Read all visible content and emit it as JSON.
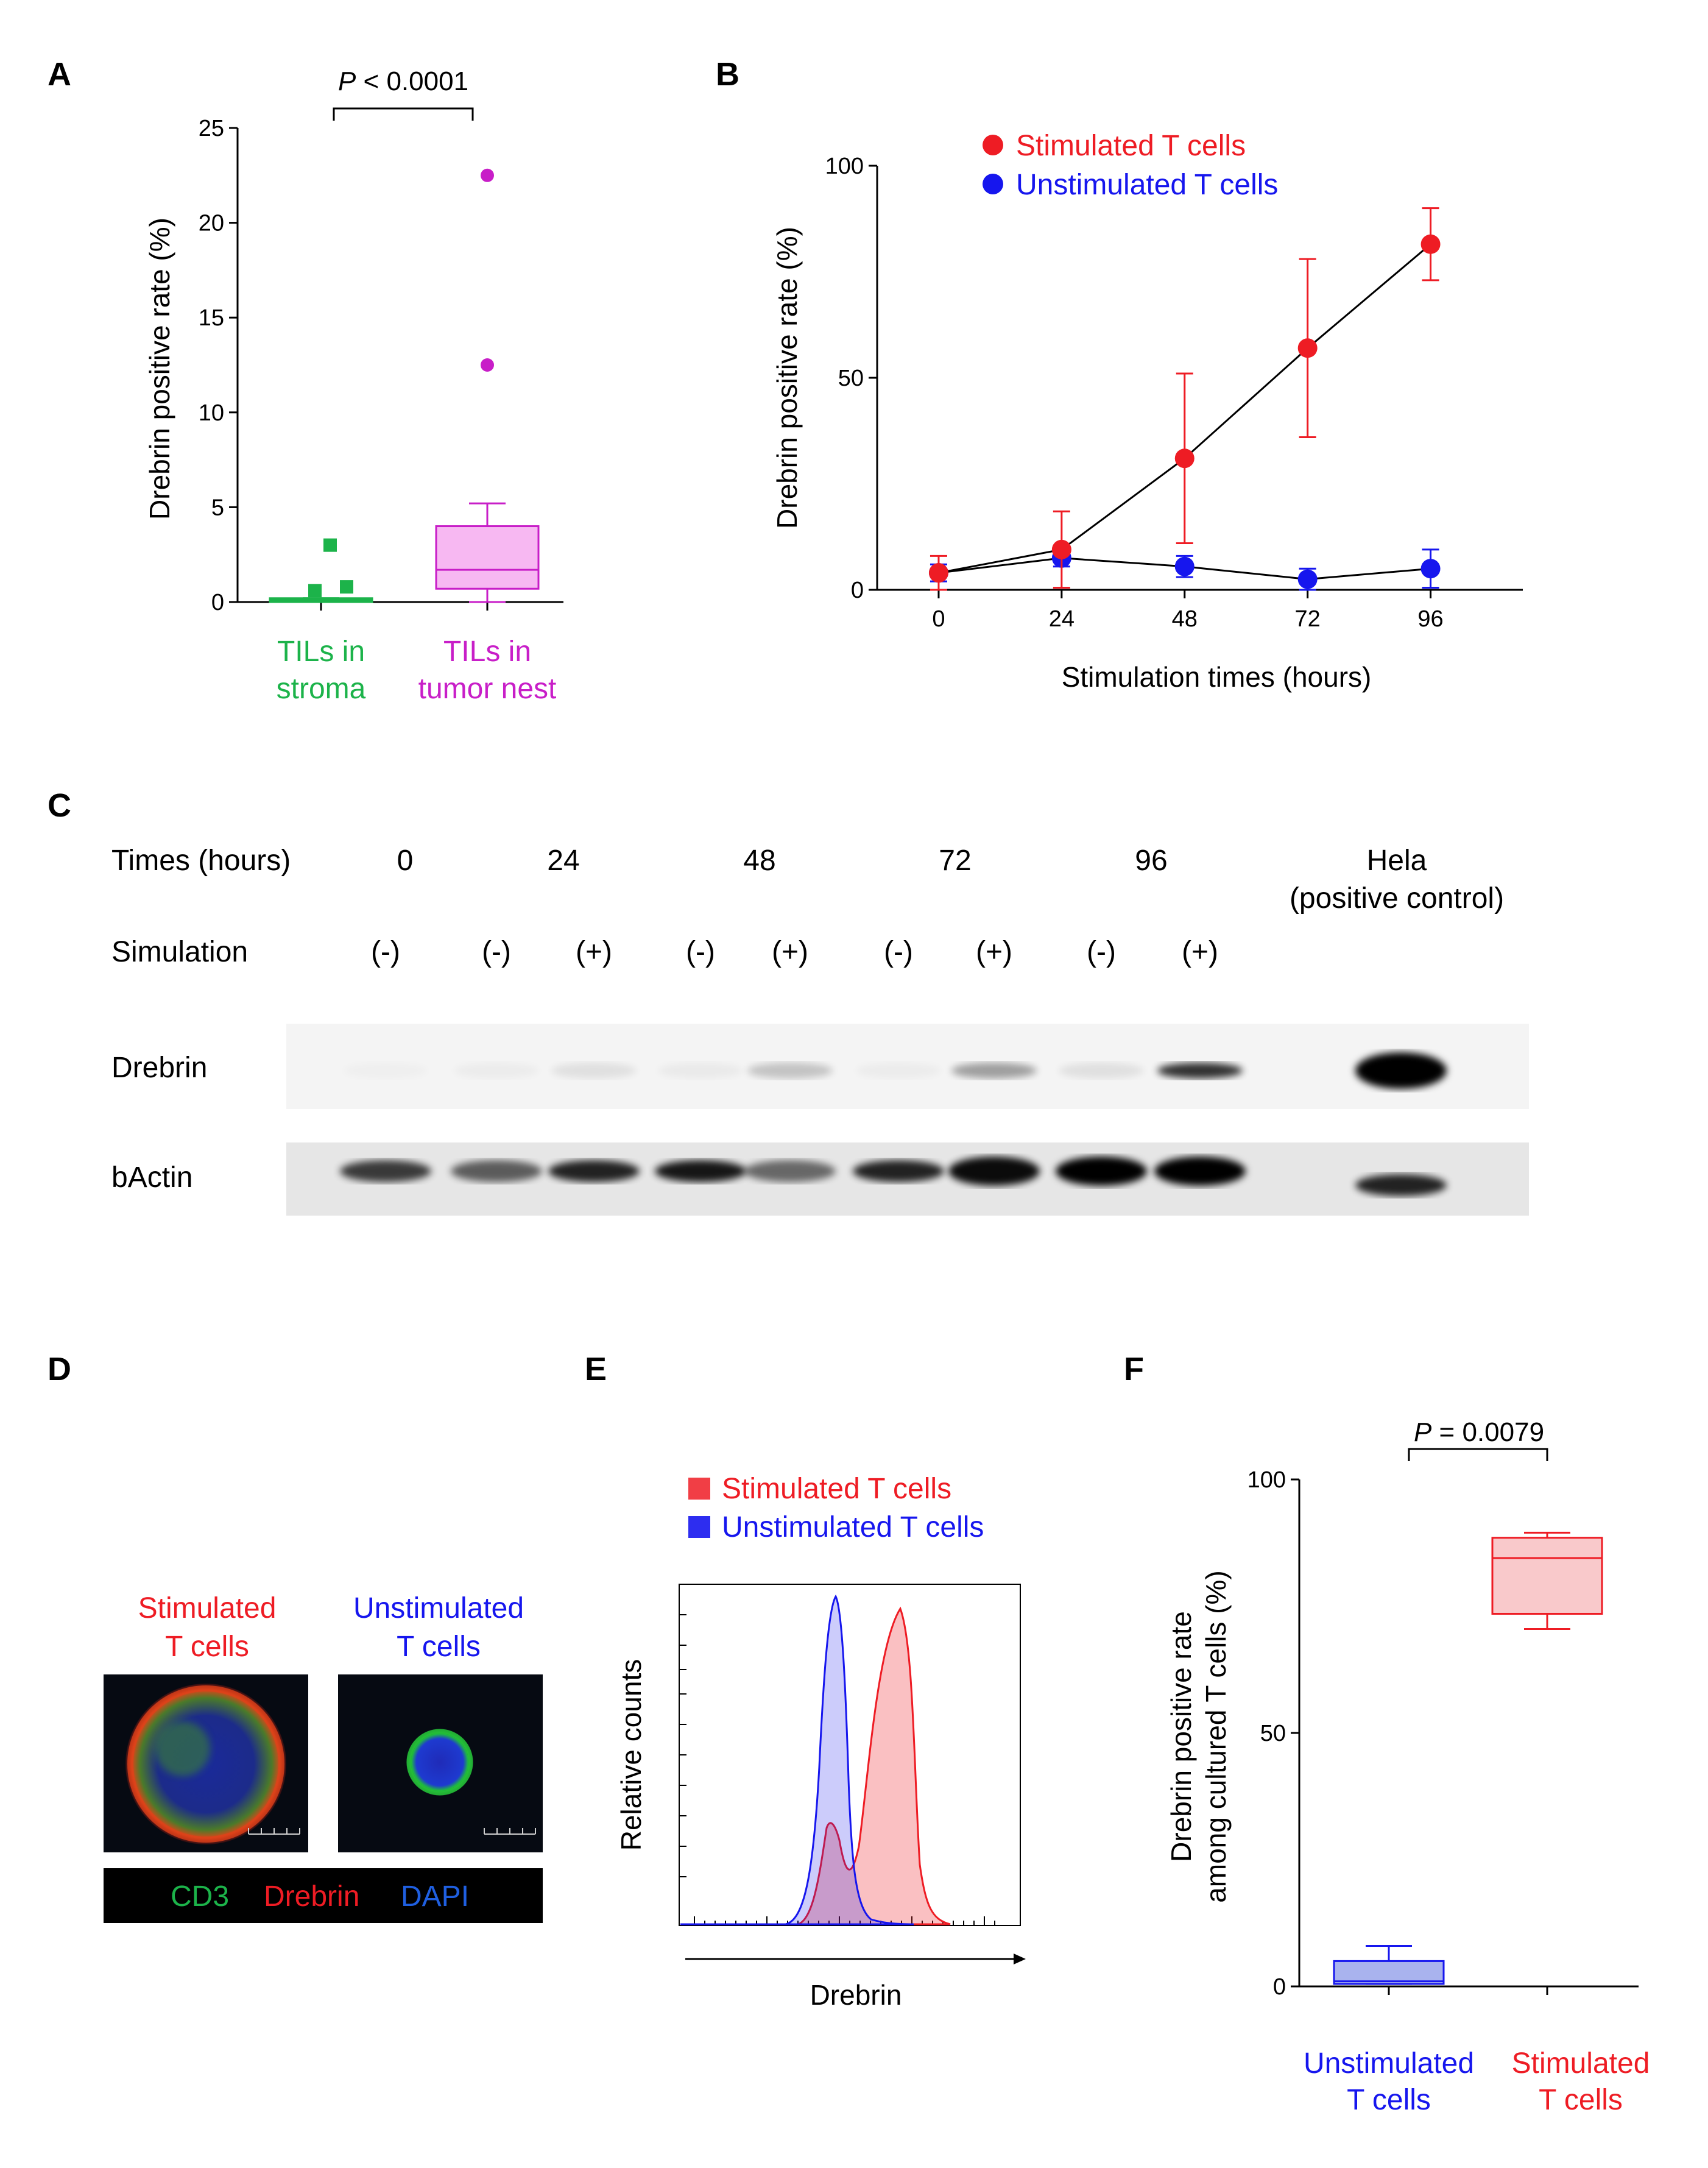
{
  "colors": {
    "green": "#1cb34a",
    "magenta": "#c81ec8",
    "magenta_fill": "#f7b8f2",
    "red": "#ee1c24",
    "red_fill": "#f9c9cb",
    "blue": "#1616ee",
    "blue_fill": "#a9b3ee"
  },
  "panels": {
    "A": {
      "letter": "A",
      "pvalue_italic": "P",
      "pvalue_rest": " < 0.0001",
      "cat1_line1": "TILs in",
      "cat1_line2": "stroma",
      "cat2_line1": "TILs in",
      "cat2_line2": "tumor nest"
    },
    "B": {
      "letter": "B"
    },
    "C": {
      "letter": "C",
      "row_times": "Times (hours)",
      "row_stim": "Simulation",
      "row_drebrin": "Drebrin",
      "row_bactin": "bActin",
      "hela_line1": "Hela",
      "hela_line2": "(positive control)"
    },
    "D": {
      "letter": "D",
      "left_line1": "Stimulated",
      "left_line2": "T cells",
      "right_line1": "Unstimulated",
      "right_line2": "T cells",
      "legend_cd3": "CD3",
      "legend_drebrin": "Drebrin",
      "legend_dapi": "DAPI"
    },
    "E": {
      "letter": "E"
    },
    "F": {
      "letter": "F",
      "pvalue_italic": "P",
      "pvalue_rest": " = 0.0079"
    }
  },
  "chart_data": [
    {
      "panel": "A",
      "type": "box",
      "ylabel": "Drebrin positive rate (%)",
      "ylim": [
        0,
        25
      ],
      "yticks": [
        0,
        5,
        10,
        15,
        20,
        25
      ],
      "categories": [
        "TILs in stroma",
        "TILs in tumor nest"
      ],
      "boxes": [
        {
          "category": "TILs in stroma",
          "min": 0,
          "q1": 0,
          "median": 0,
          "q3": 0.2,
          "max": 0.2,
          "outliers": [
            3.0,
            0.6,
            0.8
          ]
        },
        {
          "category": "TILs in tumor nest",
          "min": 0,
          "q1": 0.7,
          "median": 1.7,
          "q3": 4.0,
          "max": 5.2,
          "outliers": [
            22.5,
            12.5
          ]
        }
      ],
      "annotation": "P < 0.0001"
    },
    {
      "panel": "B",
      "type": "line",
      "xlabel": "Stimulation times (hours)",
      "ylabel": "Drebrin positive rate (%)",
      "x": [
        0,
        24,
        48,
        72,
        96
      ],
      "xlim": [
        -12,
        114
      ],
      "ylim": [
        0,
        100
      ],
      "yticks": [
        0,
        50,
        100
      ],
      "legend": "top-left",
      "series": [
        {
          "name": "Stimulated T cells",
          "color": "#ee1c24",
          "values": [
            4,
            9.5,
            31,
            57,
            81.5
          ],
          "err": [
            4,
            9,
            20,
            21,
            8.5
          ]
        },
        {
          "name": "Unstimulated T cells",
          "color": "#1616ee",
          "values": [
            4,
            7.5,
            5.5,
            2.5,
            5
          ],
          "err": [
            2,
            2,
            2.5,
            2.5,
            4.5
          ]
        }
      ]
    },
    {
      "panel": "C",
      "type": "table",
      "times": [
        "0",
        "24",
        "48",
        "72",
        "96"
      ],
      "stimulation": [
        "(-)",
        "(-)",
        "(+)",
        "(-)",
        "(+)",
        "(-)",
        "(+)",
        "(-)",
        "(+)"
      ],
      "drebrin_band_intensity": [
        0.02,
        0.03,
        0.08,
        0.04,
        0.2,
        0.03,
        0.35,
        0.08,
        0.8,
        1.0
      ],
      "bactin_band_intensity": [
        0.75,
        0.6,
        0.85,
        0.9,
        0.55,
        0.85,
        0.95,
        1.0,
        1.0,
        0.85
      ]
    },
    {
      "panel": "E",
      "type": "area",
      "xlabel": "Drebrin",
      "ylabel": "Relative counts",
      "legend": "top",
      "series": [
        {
          "name": "Stimulated T cells",
          "color": "#ee1c24"
        },
        {
          "name": "Unstimulated T cells",
          "color": "#1616ee"
        }
      ]
    },
    {
      "panel": "F",
      "type": "box",
      "ylabel_line1": "Drebrin positive rate",
      "ylabel_line2": "among cultured T cells (%)",
      "ylim": [
        0,
        100
      ],
      "yticks": [
        0,
        50,
        100
      ],
      "categories_line1": [
        "Unstimulated",
        "Stimulated"
      ],
      "categories_line2": [
        "T cells",
        "T cells"
      ],
      "boxes": [
        {
          "category": "Unstimulated T cells",
          "color": "#1616ee",
          "min": 0.5,
          "q1": 0.5,
          "median": 1,
          "q3": 5,
          "max": 8
        },
        {
          "category": "Stimulated T cells",
          "color": "#ee1c24",
          "min": 70.5,
          "q1": 73.5,
          "median": 84.5,
          "q3": 88.5,
          "max": 89.5
        }
      ],
      "annotation": "P = 0.0079"
    }
  ]
}
